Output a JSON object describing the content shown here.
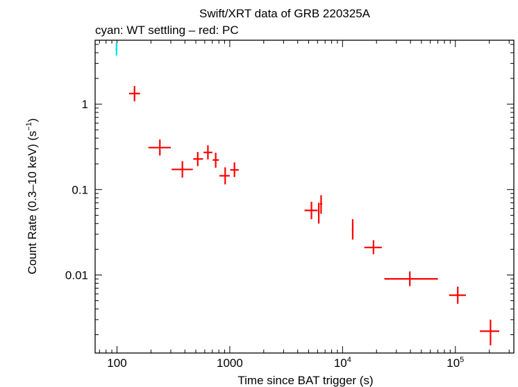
{
  "chart_data": {
    "type": "scatter",
    "title": "Swift/XRT data of GRB 220325A",
    "subtitle": "cyan: WT settling – red: PC",
    "xlabel": "Time since BAT trigger (s)",
    "ylabel_main": "Count Rate (0.3–10 keV) (s",
    "ylabel_sup": "−1",
    "ylabel_end": ")",
    "x_scale": "log",
    "y_scale": "log",
    "xlim": [
      64,
      330000
    ],
    "ylim": [
      0.00122,
      5.6
    ],
    "x_ticks": [
      {
        "value": 100,
        "label": "100"
      },
      {
        "value": 1000,
        "label": "1000"
      },
      {
        "value": 10000,
        "label": "10",
        "sup": "4"
      },
      {
        "value": 100000,
        "label": "10",
        "sup": "5"
      }
    ],
    "y_ticks": [
      {
        "value": 1,
        "label": "1"
      },
      {
        "value": 0.1,
        "label": "0.1"
      },
      {
        "value": 0.01,
        "label": "0.01"
      }
    ],
    "grid": false,
    "series": [
      {
        "color": "#00e5ee",
        "points": [
          {
            "x": 99,
            "xlo": 97,
            "xhi": 101,
            "y": 4.4,
            "ylo": 3.7,
            "yhi": 5.2
          }
        ]
      },
      {
        "color": "#ff0000",
        "points": [
          {
            "x": 143,
            "xlo": 128,
            "xhi": 160,
            "y": 1.33,
            "ylo": 1.08,
            "yhi": 1.63
          },
          {
            "x": 240,
            "xlo": 190,
            "xhi": 300,
            "y": 0.31,
            "ylo": 0.25,
            "yhi": 0.385
          },
          {
            "x": 380,
            "xlo": 305,
            "xhi": 470,
            "y": 0.172,
            "ylo": 0.138,
            "yhi": 0.215
          },
          {
            "x": 520,
            "xlo": 475,
            "xhi": 580,
            "y": 0.228,
            "ylo": 0.188,
            "yhi": 0.275
          },
          {
            "x": 640,
            "xlo": 585,
            "xhi": 700,
            "y": 0.272,
            "ylo": 0.225,
            "yhi": 0.33
          },
          {
            "x": 750,
            "xlo": 705,
            "xhi": 800,
            "y": 0.222,
            "ylo": 0.18,
            "yhi": 0.27
          },
          {
            "x": 910,
            "xlo": 810,
            "xhi": 1000,
            "y": 0.145,
            "ylo": 0.115,
            "yhi": 0.182
          },
          {
            "x": 1100,
            "xlo": 1010,
            "xhi": 1200,
            "y": 0.17,
            "ylo": 0.14,
            "yhi": 0.208
          },
          {
            "x": 5300,
            "xlo": 4600,
            "xhi": 6000,
            "y": 0.057,
            "ylo": 0.045,
            "yhi": 0.072
          },
          {
            "x": 6150,
            "xlo": 6050,
            "xhi": 6250,
            "y": 0.055,
            "ylo": 0.04,
            "yhi": 0.07
          },
          {
            "x": 6450,
            "xlo": 6300,
            "xhi": 6600,
            "y": 0.068,
            "ylo": 0.052,
            "yhi": 0.086
          },
          {
            "x": 12300,
            "xlo": 12100,
            "xhi": 12500,
            "y": 0.034,
            "ylo": 0.026,
            "yhi": 0.045
          },
          {
            "x": 18800,
            "xlo": 15600,
            "xhi": 22300,
            "y": 0.021,
            "ylo": 0.0175,
            "yhi": 0.0255
          },
          {
            "x": 39500,
            "xlo": 23500,
            "xhi": 70000,
            "y": 0.009,
            "ylo": 0.0074,
            "yhi": 0.011
          },
          {
            "x": 105000,
            "xlo": 88000,
            "xhi": 124000,
            "y": 0.0058,
            "ylo": 0.0046,
            "yhi": 0.0073
          },
          {
            "x": 205000,
            "xlo": 165000,
            "xhi": 245000,
            "y": 0.0022,
            "ylo": 0.0015,
            "yhi": 0.003
          }
        ]
      }
    ]
  }
}
